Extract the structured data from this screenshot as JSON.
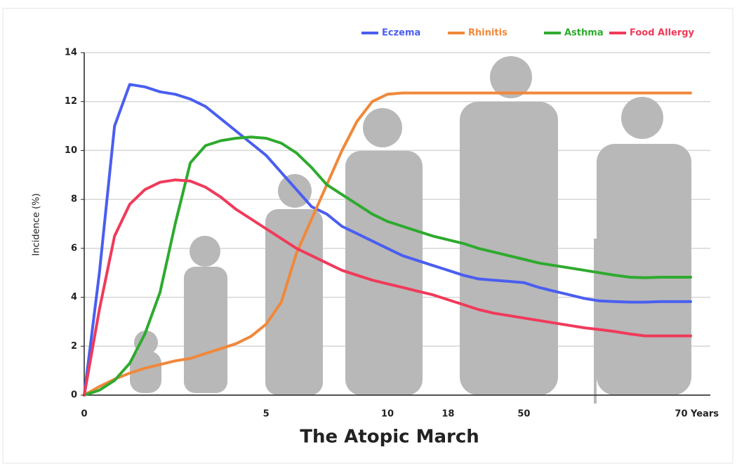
{
  "chart_data": {
    "type": "line",
    "title": "The Atopic March",
    "y_label": "Incidence (%)",
    "categories": [
      "0",
      null,
      null,
      null,
      null,
      null,
      null,
      null,
      null,
      null,
      null,
      null,
      "5",
      null,
      null,
      null,
      null,
      null,
      null,
      null,
      "10",
      null,
      null,
      null,
      "18",
      null,
      null,
      null,
      null,
      "50",
      null,
      null,
      null,
      null,
      null,
      null,
      null,
      null,
      null,
      null,
      "70 Years"
    ],
    "series": [
      {
        "name": "Eczema",
        "color": "#4a5ef0",
        "values": [
          0,
          5,
          11,
          12.7,
          12.6,
          12.4,
          12.3,
          12.1,
          11.8,
          11.3,
          10.8,
          10.3,
          9.8,
          9.1,
          8.4,
          7.7,
          7.4,
          6.9,
          6.6,
          6.3,
          6.0,
          5.7,
          5.5,
          5.3,
          5.1,
          4.9,
          4.75,
          4.7,
          4.65,
          4.6,
          4.4,
          4.25,
          4.1,
          3.95,
          3.85,
          3.82,
          3.8,
          3.8,
          3.82,
          3.82,
          3.82
        ]
      },
      {
        "name": "Rhinitis",
        "color": "#f0883a",
        "values": [
          0,
          0.35,
          0.65,
          0.9,
          1.1,
          1.25,
          1.4,
          1.5,
          1.7,
          1.9,
          2.1,
          2.4,
          2.9,
          3.8,
          5.8,
          7.2,
          8.6,
          10,
          11.2,
          12.0,
          12.3,
          12.35,
          12.35,
          12.35,
          12.35,
          12.35,
          12.35,
          12.35,
          12.35,
          12.35,
          12.35,
          12.35,
          12.35,
          12.35,
          12.35,
          12.35,
          12.35,
          12.35,
          12.35,
          12.35,
          12.35
        ]
      },
      {
        "name": "Asthma",
        "color": "#2eaa2e",
        "values": [
          0,
          0.2,
          0.6,
          1.3,
          2.5,
          4.2,
          7.0,
          9.5,
          10.2,
          10.4,
          10.5,
          10.55,
          10.5,
          10.3,
          9.9,
          9.3,
          8.6,
          8.2,
          7.8,
          7.4,
          7.1,
          6.9,
          6.7,
          6.5,
          6.35,
          6.2,
          6.0,
          5.85,
          5.7,
          5.55,
          5.4,
          5.3,
          5.2,
          5.1,
          5.0,
          4.9,
          4.82,
          4.8,
          4.82,
          4.82,
          4.82
        ]
      },
      {
        "name": "Food Allergy",
        "color": "#f03a5a",
        "values": [
          0,
          3.5,
          6.5,
          7.8,
          8.4,
          8.7,
          8.8,
          8.75,
          8.5,
          8.1,
          7.6,
          7.2,
          6.8,
          6.4,
          6.0,
          5.7,
          5.4,
          5.1,
          4.9,
          4.7,
          4.55,
          4.4,
          4.25,
          4.1,
          3.9,
          3.7,
          3.5,
          3.35,
          3.25,
          3.15,
          3.05,
          2.95,
          2.85,
          2.75,
          2.68,
          2.6,
          2.5,
          2.42,
          2.42,
          2.42,
          2.42
        ]
      }
    ],
    "ylim": [
      0,
      14
    ],
    "yticks": [
      0,
      2,
      4,
      6,
      8,
      10,
      12,
      14
    ],
    "grid": true
  }
}
